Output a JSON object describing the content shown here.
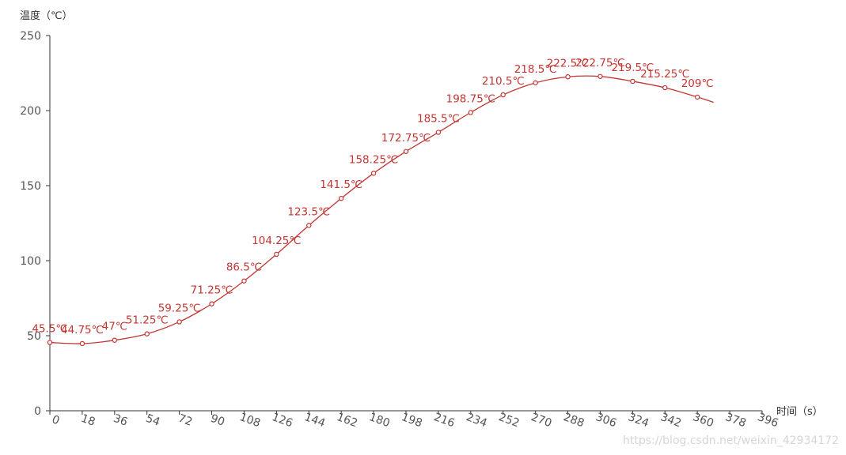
{
  "chart_data": {
    "type": "line",
    "xlabel": "时间（s）",
    "ylabel": "温度（℃）",
    "xlim": [
      0,
      396
    ],
    "ylim": [
      0,
      250
    ],
    "x_ticks": [
      0,
      18,
      36,
      54,
      72,
      90,
      108,
      126,
      144,
      162,
      180,
      198,
      216,
      234,
      252,
      270,
      288,
      306,
      324,
      342,
      360,
      378,
      396
    ],
    "y_ticks": [
      0,
      50,
      100,
      150,
      200,
      250
    ],
    "smooth": true,
    "grid": false,
    "label_suffix": "℃",
    "series": [
      {
        "color": "#c23531",
        "x": [
          0,
          18,
          36,
          54,
          72,
          90,
          108,
          126,
          144,
          162,
          180,
          198,
          216,
          234,
          252,
          270,
          288,
          306,
          324,
          342,
          360
        ],
        "values": [
          45.5,
          44.75,
          47,
          51.25,
          59.25,
          71.25,
          86.5,
          104.25,
          123.5,
          141.5,
          158.25,
          172.75,
          185.5,
          198.75,
          210.5,
          218.5,
          222.5,
          222.75,
          219.5,
          215.25,
          209
        ],
        "labels": [
          "45.5℃",
          "44.75℃",
          "47℃",
          "51.25℃",
          "59.25℃",
          "71.25℃",
          "86.5℃",
          "104.25℃",
          "123.5℃",
          "141.5℃",
          "158.25℃",
          "172.75℃",
          "185.5℃",
          "198.75℃",
          "210.5℃",
          "218.5℃",
          "222.5℃",
          "222.75℃",
          "219.5℃",
          "215.25℃",
          "209℃"
        ],
        "tail": {
          "x": 369,
          "value": 205.5
        }
      }
    ]
  },
  "watermark": "https://blog.csdn.net/weixin_42934172"
}
